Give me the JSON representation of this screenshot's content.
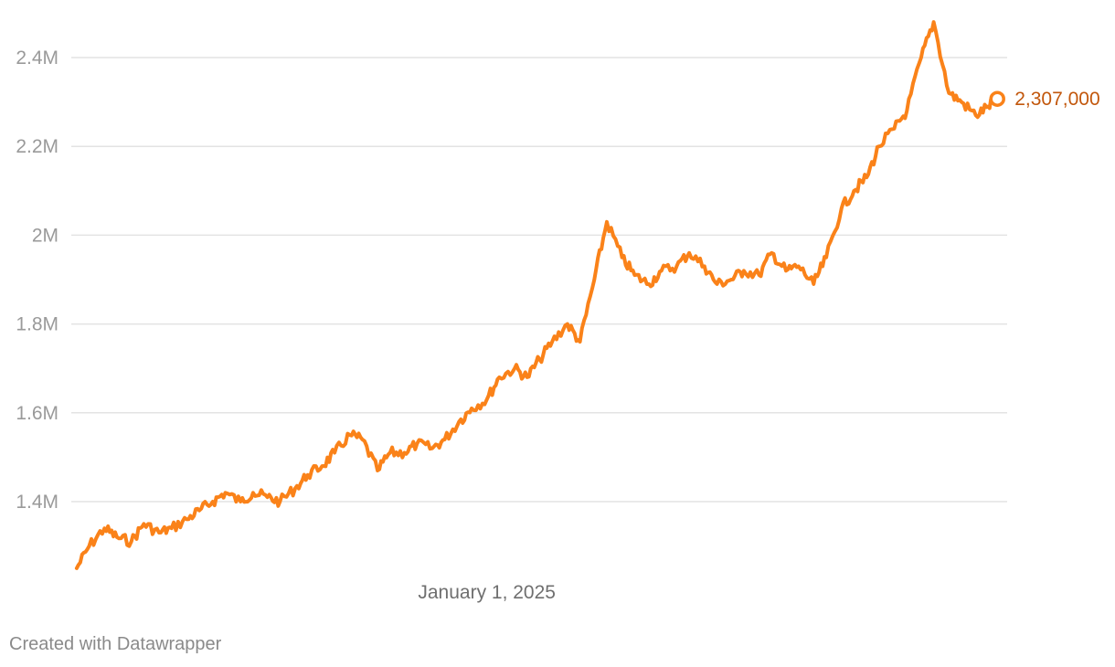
{
  "chart_data": {
    "type": "line",
    "title": "",
    "xlabel": "",
    "ylabel": "",
    "x_tick_labels": [
      "January 1, 2025"
    ],
    "y_tick_labels": [
      "1.4M",
      "1.6M",
      "1.8M",
      "2M",
      "2.2M",
      "2.4M"
    ],
    "y_ticks": [
      1400000,
      1600000,
      1800000,
      2000000,
      2200000,
      2400000
    ],
    "ylim": [
      1220000,
      2500000
    ],
    "xlim": [
      "2023-09-25",
      "2026-08-05"
    ],
    "grid": true,
    "line_color": "#fa8219",
    "end_label": "2,307,000",
    "series": [
      {
        "x": [
          "2023-10-01",
          "2023-10-15",
          "2023-11-01",
          "2023-11-15",
          "2023-12-01",
          "2023-12-15",
          "2024-01-01",
          "2024-01-15",
          "2024-02-01",
          "2024-02-15",
          "2024-03-01",
          "2024-03-15",
          "2024-04-01",
          "2024-04-15",
          "2024-05-01",
          "2024-05-15",
          "2024-06-01",
          "2024-06-15",
          "2024-07-01",
          "2024-07-15",
          "2024-08-01",
          "2024-08-15",
          "2024-09-01",
          "2024-09-15",
          "2024-10-01",
          "2024-10-15",
          "2024-11-01",
          "2024-11-15",
          "2024-12-01",
          "2024-12-15",
          "2025-01-01",
          "2025-01-15",
          "2025-02-01",
          "2025-02-15",
          "2025-03-01",
          "2025-03-15",
          "2025-04-01",
          "2025-04-15",
          "2025-05-01",
          "2025-05-15",
          "2025-06-01",
          "2025-06-15",
          "2025-07-01",
          "2025-07-15",
          "2025-08-01",
          "2025-08-15",
          "2025-09-01",
          "2025-09-15",
          "2025-10-01",
          "2025-10-15",
          "2025-11-01",
          "2025-11-15",
          "2025-12-01",
          "2025-12-15",
          "2026-01-01",
          "2026-01-15",
          "2026-02-01",
          "2026-02-15",
          "2026-03-01",
          "2026-03-15",
          "2026-04-01",
          "2026-04-15",
          "2026-05-01",
          "2026-05-15",
          "2026-06-01",
          "2026-06-15",
          "2026-07-01",
          "2026-07-15",
          "2026-07-25"
        ],
        "values": [
          1250000,
          1300000,
          1340000,
          1320000,
          1310000,
          1350000,
          1330000,
          1340000,
          1360000,
          1380000,
          1400000,
          1420000,
          1400000,
          1420000,
          1410000,
          1400000,
          1430000,
          1460000,
          1480000,
          1510000,
          1550000,
          1540000,
          1470000,
          1510000,
          1510000,
          1530000,
          1520000,
          1540000,
          1580000,
          1610000,
          1630000,
          1680000,
          1700000,
          1680000,
          1720000,
          1760000,
          1800000,
          1760000,
          1900000,
          2030000,
          1950000,
          1910000,
          1890000,
          1920000,
          1930000,
          1960000,
          1930000,
          1890000,
          1900000,
          1920000,
          1910000,
          1960000,
          1920000,
          1930000,
          1890000,
          1950000,
          2060000,
          2100000,
          2130000,
          2200000,
          2240000,
          2280000,
          2400000,
          2480000,
          2320000,
          2300000,
          2270000,
          2290000,
          2307000
        ]
      }
    ]
  },
  "footer": {
    "credit": "Created with Datawrapper"
  }
}
